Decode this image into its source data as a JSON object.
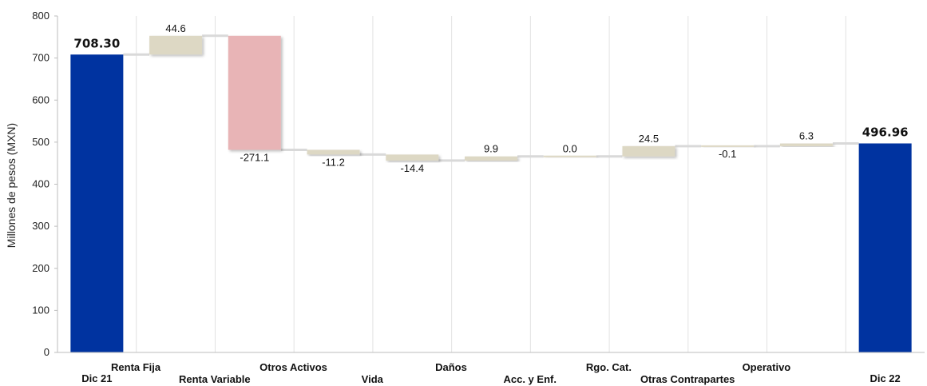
{
  "chart_data": {
    "type": "bar",
    "subtype": "waterfall",
    "ylabel": "Millones de pesos (MXN)",
    "ylim": [
      0,
      800
    ],
    "yticks": [
      "0",
      "100",
      "200",
      "300",
      "400",
      "500",
      "600",
      "700",
      "800"
    ],
    "grid": "vertical",
    "categories": [
      "Dic 21",
      "Renta Fija",
      "Renta Variable",
      "Otros Activos",
      "Vida",
      "Daños",
      "Acc. y Enf.",
      "Rgo. Cat.",
      "Otras Contrapartes",
      "Operativo",
      "Dic 22"
    ],
    "steps": [
      {
        "category": "Dic 21",
        "kind": "total",
        "value": 708.3,
        "label": "708.30"
      },
      {
        "category": "Renta Fija",
        "kind": "delta",
        "value": 44.6,
        "label": "44.6"
      },
      {
        "category": "Renta Variable",
        "kind": "delta",
        "value": -271.1,
        "label": "-271.1"
      },
      {
        "category": "Otros Activos",
        "kind": "delta",
        "value": -11.2,
        "label": "-11.2"
      },
      {
        "category": "Vida",
        "kind": "delta",
        "value": -14.4,
        "label": "-14.4"
      },
      {
        "category": "Daños",
        "kind": "delta",
        "value": 9.9,
        "label": "9.9"
      },
      {
        "category": "Acc. y Enf.",
        "kind": "delta",
        "value": 0.0,
        "label": "0.0"
      },
      {
        "category": "Rgo. Cat.",
        "kind": "delta",
        "value": 24.5,
        "label": "24.5"
      },
      {
        "category": "Otras Contrapartes",
        "kind": "delta",
        "value": -0.1,
        "label": "-0.1"
      },
      {
        "category": "Operativo",
        "kind": "delta",
        "value": 6.3,
        "label": "6.3"
      },
      {
        "category": "Dic 22",
        "kind": "total",
        "value": 496.96,
        "label": "496.96"
      }
    ],
    "colors": {
      "total": "#0033a0",
      "increase": "#ddd8c4",
      "decrease": "#e8b4b6",
      "neutral_delta": "#ddd8c4",
      "grid": "#e2e2e2",
      "connector": "#d9d9d9"
    }
  }
}
